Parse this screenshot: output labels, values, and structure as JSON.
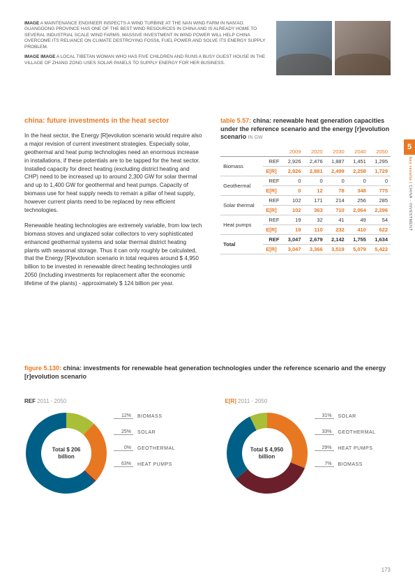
{
  "captions": {
    "c1_prefix": "image",
    "c1": " A MAINTENANCE ENGINEER INSPECTS A WIND TURBINE AT THE NAN WIND FARM IN NAN'AO. GUANGDONG PROVINCE HAS ONE OF THE BEST WIND RESOURCES IN CHINA AND IS ALREADY HOME TO SEVERAL INDUSTRIAL SCALE WIND FARMS. MASSIVE INVESTMENT IN WIND POWER WILL HELP CHINA OVERCOME ITS RELIANCE ON CLIMATE DESTROYING FOSSIL FUEL POWER AND SOLVE ITS ENERGY SUPPLY PROBLEM.",
    "c2_prefix": "image image",
    "c2": " A LOCAL TIBETAN WOMAN WHO HAS FIVE CHILDREN AND RUNS A BUSY GUEST HOUSE IN THE VILLAGE OF ZHANG ZONG USES SOLAR PANELS TO SUPPLY ENERGY FOR HER BUSINESS."
  },
  "left": {
    "heading": "china: future investments in the heat sector",
    "p1": "In the heat sector, the Energy [R]evolution scenario would require also a major revision of current investment strategies. Especially solar, geothermal and heat pump technologies need an enormous increase in installations, if these potentials are to be tapped for the heat sector. Installed capacity for direct heating (excluding district heating and CHP) need to be increased up to around 2,300 GW for solar thermal and up to 1,400 GW for geothermal and heat pumps. Capacity of biomass use for heat supply needs to remain a pillar of heat supply, however current plants need to be replaced by new efficient technologies.",
    "p2": "Renewable heating technologies are extremely variable, from low tech biomass stoves and unglazed solar collectors to very sophisticated enhanced geothermal systems and solar thermal district heating plants with seasonal storage. Thus it can only roughly be calculated, that the Energy [R]evolution scenario in total requires around $ 4,950 billion to be invested in renewable direct heating technologies until 2050 (including investments for replacement after the economic lifetime of the plants) - approximately $ 124 billion per year."
  },
  "table": {
    "label": "table 5.57:",
    "title": " china: renewable heat generation capacities under the reference scenario and the energy [r]evolution scenario ",
    "unit": "IN GW",
    "years": [
      "2009",
      "2020",
      "2030",
      "2040",
      "2050"
    ],
    "ref": "REF",
    "er": "E[R]",
    "rows": [
      {
        "name": "Biomass",
        "ref": [
          "2,926",
          "2,476",
          "1,887",
          "1,451",
          "1,295"
        ],
        "er": [
          "2,926",
          "2,881",
          "2,499",
          "2,258",
          "1,729"
        ]
      },
      {
        "name": "Geothermal",
        "ref": [
          "0",
          "0",
          "0",
          "0",
          "0"
        ],
        "er": [
          "0",
          "12",
          "78",
          "348",
          "775"
        ]
      },
      {
        "name": "Solar thermal",
        "ref": [
          "102",
          "171",
          "214",
          "256",
          "285"
        ],
        "er": [
          "102",
          "363",
          "710",
          "2,064",
          "2,296"
        ]
      },
      {
        "name": "Heat pumps",
        "ref": [
          "19",
          "32",
          "41",
          "49",
          "54"
        ],
        "er": [
          "19",
          "110",
          "232",
          "410",
          "622"
        ]
      }
    ],
    "total": {
      "name": "Total",
      "ref": [
        "3,047",
        "2,679",
        "2,142",
        "1,755",
        "1,634"
      ],
      "er": [
        "3,047",
        "3,366",
        "3,519",
        "5,079",
        "5,422"
      ]
    }
  },
  "figure": {
    "label": "figure 5.130:",
    "title": " china: investments for renewable heat generation technologies under the reference scenario and the energy [r]evolution scenario"
  },
  "charts": {
    "ref": {
      "head_bold": "REF",
      "head_years": " 2011 - 2050",
      "center": "Total $ 206 billion",
      "colors": {
        "biomass": "#a9bf38",
        "solar": "#e87722",
        "geothermal": "#6b1f2a",
        "heatpumps": "#005f86"
      },
      "slices": [
        {
          "color": "#a9bf38",
          "value": 12
        },
        {
          "color": "#e87722",
          "value": 25
        },
        {
          "color": "#6b1f2a",
          "value": 0.5
        },
        {
          "color": "#005f86",
          "value": 62.5
        }
      ],
      "legend": [
        {
          "pct": "12%",
          "label": "BIOMASS"
        },
        {
          "pct": "25%",
          "label": "SOLAR"
        },
        {
          "pct": "0%",
          "label": "GEOTHERMAL"
        },
        {
          "pct": "63%",
          "label": "HEAT PUMPS"
        }
      ]
    },
    "er": {
      "head_bold": "E[R]",
      "head_years": " 2011 - 2050",
      "center": "Total $ 4,950 billion",
      "slices": [
        {
          "color": "#e87722",
          "value": 31
        },
        {
          "color": "#6b1f2a",
          "value": 33
        },
        {
          "color": "#005f86",
          "value": 29
        },
        {
          "color": "#a9bf38",
          "value": 7
        }
      ],
      "legend": [
        {
          "pct": "31%",
          "label": "SOLAR"
        },
        {
          "pct": "33%",
          "label": "GEOTHERMAL"
        },
        {
          "pct": "29%",
          "label": "HEAT PUMPS"
        },
        {
          "pct": "7%",
          "label": "BIOMASS"
        }
      ]
    }
  },
  "sidebar": {
    "num": "5",
    "text_a": "key results ",
    "text_b": "| CHINA - INVESTMENT"
  },
  "page": "173"
}
